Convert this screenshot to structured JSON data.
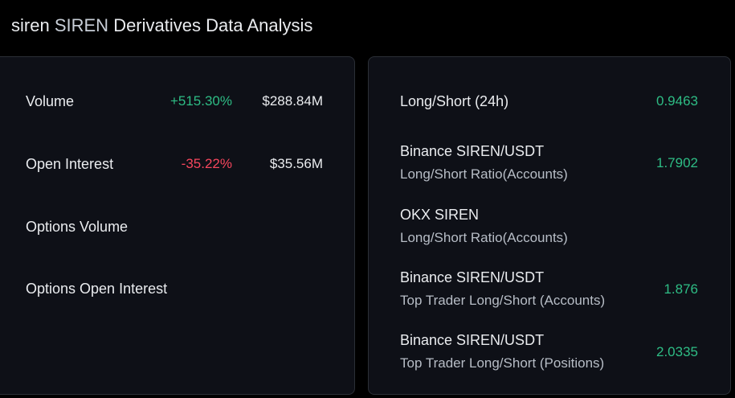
{
  "header": {
    "prefix": "siren",
    "symbol": "SIREN",
    "title": "Derivatives Data Analysis"
  },
  "left_panel": {
    "rows": [
      {
        "label": "Volume",
        "change": "+515.30%",
        "value": "$288.84M",
        "direction": "up"
      },
      {
        "label": "Open Interest",
        "change": "-35.22%",
        "value": "$35.56M",
        "direction": "down"
      },
      {
        "label": "Options Volume",
        "change": "",
        "value": ""
      },
      {
        "label": "Options Open Interest",
        "change": "",
        "value": ""
      }
    ]
  },
  "right_panel": {
    "rows": [
      {
        "title": "Long/Short (24h)",
        "subtitle": "",
        "value": "0.9463"
      },
      {
        "title": "Binance SIREN/USDT",
        "subtitle": "Long/Short Ratio(Accounts)",
        "value": "1.7902"
      },
      {
        "title": "OKX SIREN",
        "subtitle": "Long/Short Ratio(Accounts)",
        "value": ""
      },
      {
        "title": "Binance SIREN/USDT",
        "subtitle": "Top Trader Long/Short (Accounts)",
        "value": "1.876"
      },
      {
        "title": "Binance SIREN/USDT",
        "subtitle": "Top Trader Long/Short (Positions)",
        "value": "2.0335"
      }
    ]
  },
  "colors": {
    "up": "#2ebd85",
    "down": "#f6465d",
    "background": "#000000",
    "card": "#0e1017"
  }
}
